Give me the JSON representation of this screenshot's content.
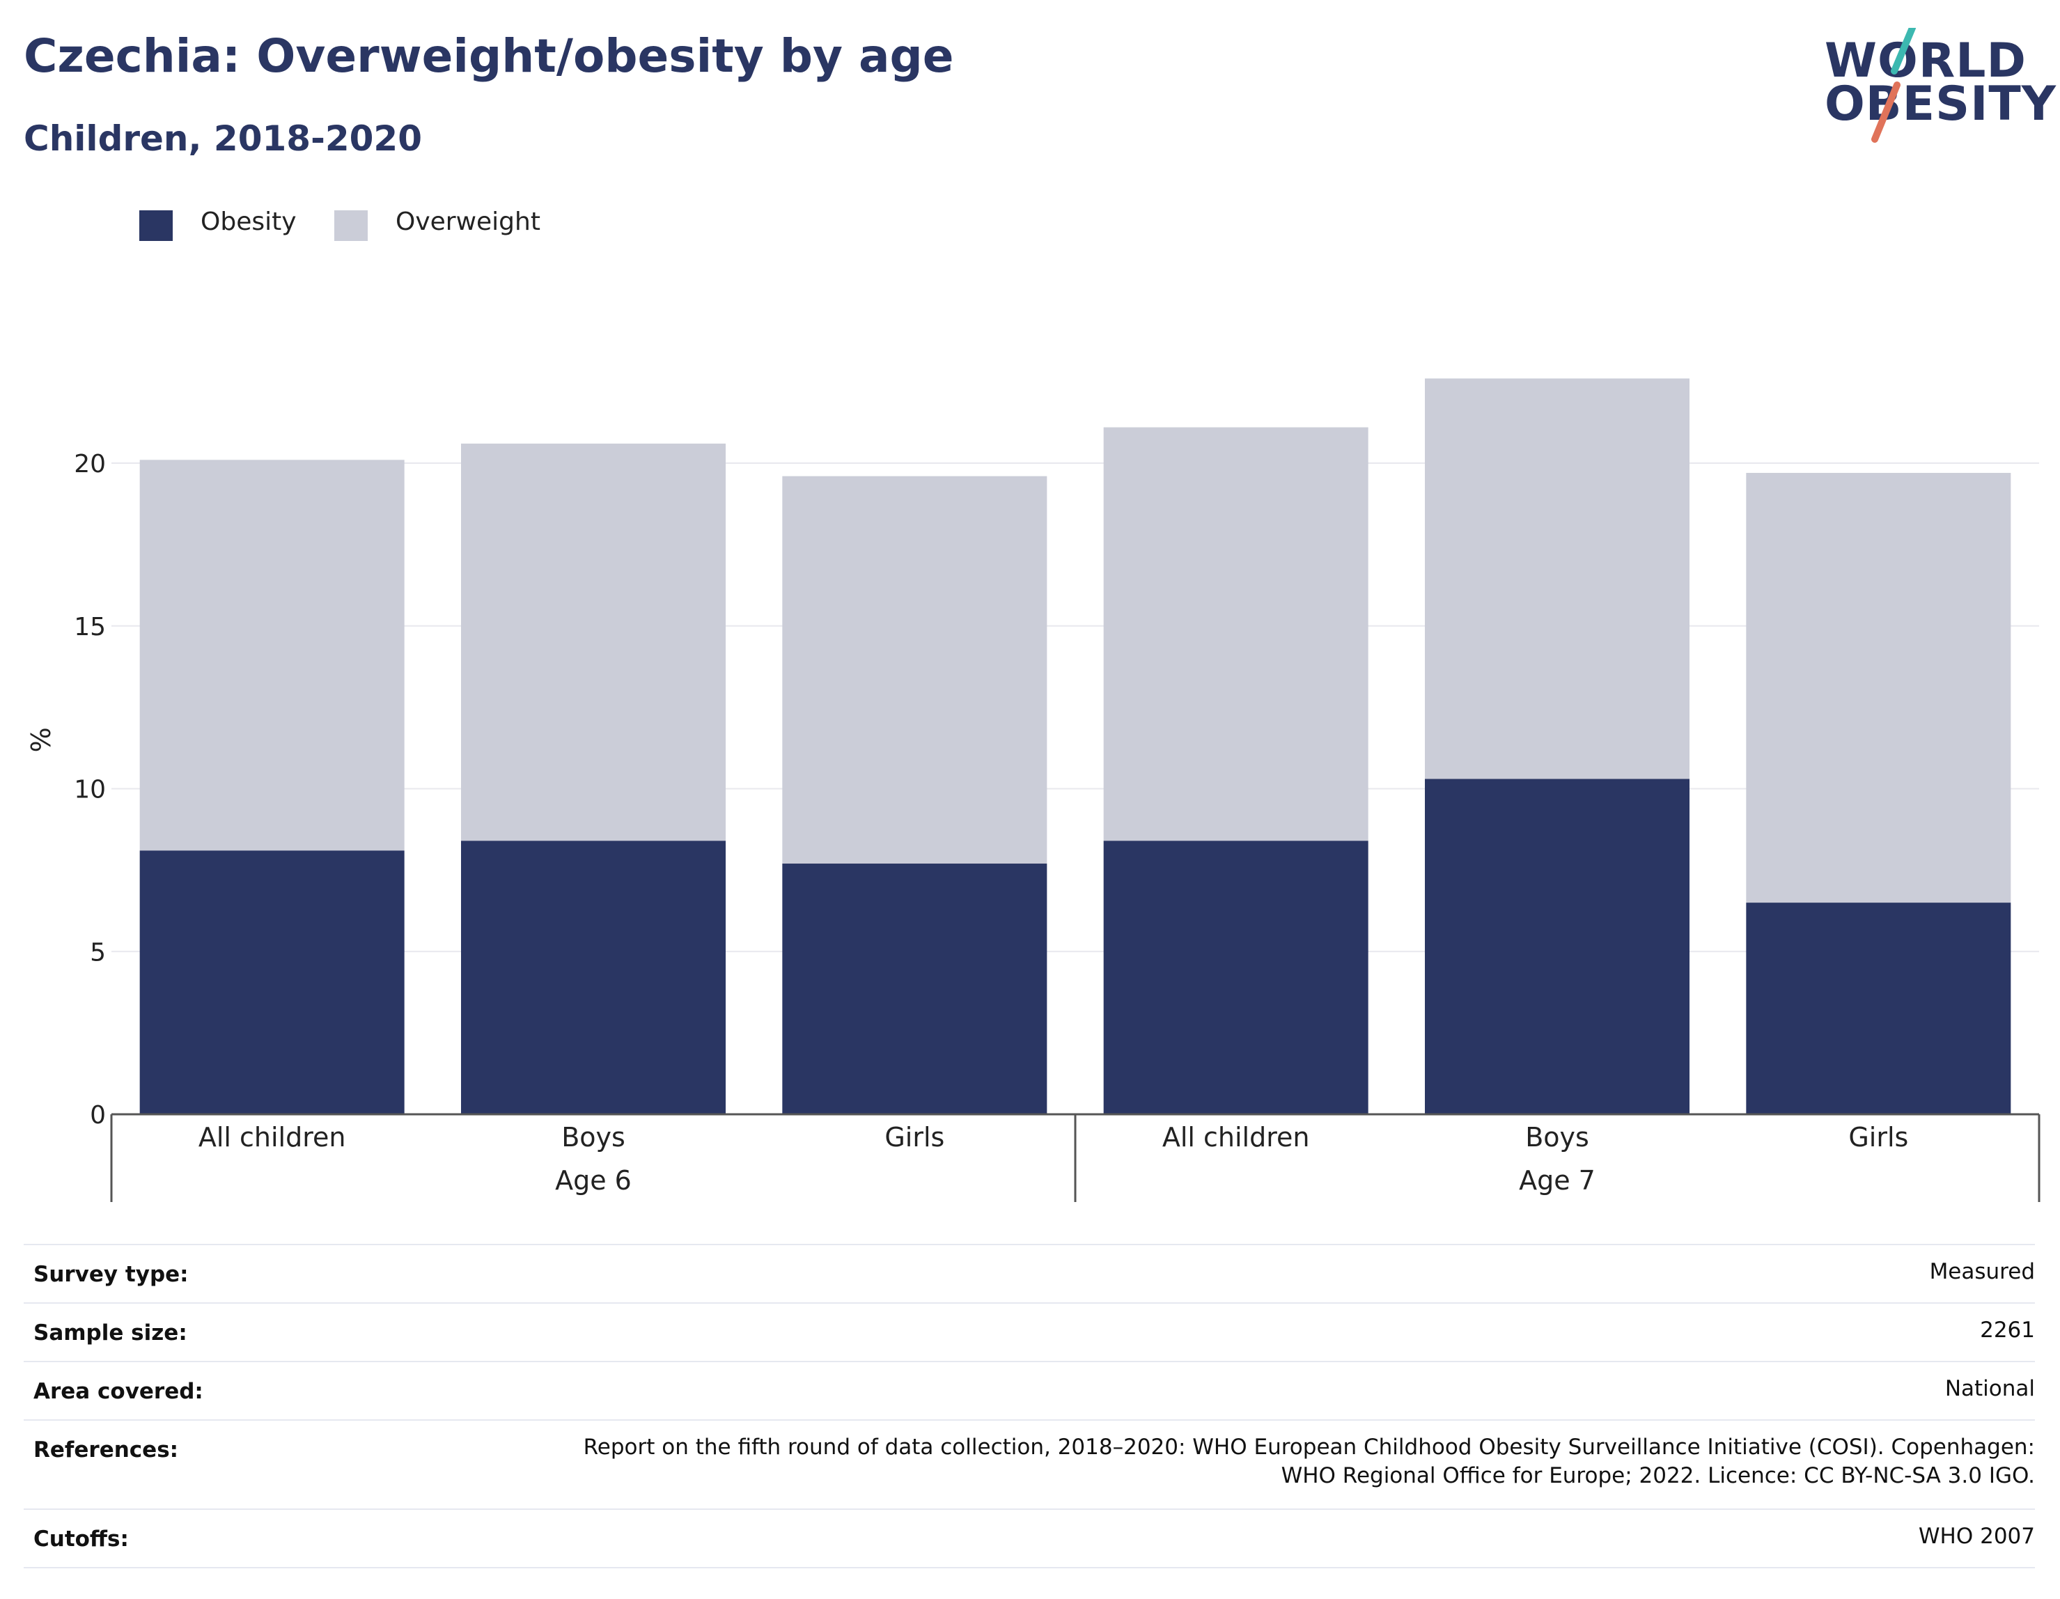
{
  "header": {
    "title": "Czechia: Overweight/obesity by age",
    "subtitle": "Children, 2018-2020"
  },
  "logo": {
    "line1": "WORLD",
    "line2": "OBESITY",
    "slash_colors": [
      "#3cb8b0",
      "#e0735a"
    ]
  },
  "colors": {
    "obesity": "#2a3663",
    "overweight": "#cbcdd8",
    "grid": "#e8e8ee",
    "axis": "#555555"
  },
  "chart_data": {
    "type": "bar",
    "stacked": true,
    "ylabel": "%",
    "ylim": [
      0,
      23
    ],
    "yticks": [
      0,
      5,
      10,
      15,
      20
    ],
    "grid": true,
    "legend_placement": "top-left",
    "groups": [
      {
        "label": "Age 6",
        "categories": [
          "All children",
          "Boys",
          "Girls"
        ]
      },
      {
        "label": "Age 7",
        "categories": [
          "All children",
          "Boys",
          "Girls"
        ]
      }
    ],
    "categories": [
      "All children",
      "Boys",
      "Girls",
      "All children",
      "Boys",
      "Girls"
    ],
    "series": [
      {
        "name": "Obesity",
        "values": [
          8.1,
          8.4,
          7.7,
          8.4,
          10.3,
          6.5
        ]
      },
      {
        "name": "Overweight",
        "values": [
          12.0,
          12.2,
          11.9,
          12.7,
          12.3,
          13.2
        ]
      }
    ]
  },
  "info": [
    {
      "key": "Survey type:",
      "value": [
        "Measured"
      ]
    },
    {
      "key": "Sample size:",
      "value": [
        "2261"
      ]
    },
    {
      "key": "Area covered:",
      "value": [
        "National"
      ]
    },
    {
      "key": "References:",
      "value": [
        "Report on the fifth round of data collection, 2018–2020: WHO European Childhood Obesity Surveillance Initiative (COSI). Copenhagen:",
        "WHO Regional Office for Europe; 2022. Licence: CC BY-NC-SA 3.0 IGO."
      ]
    },
    {
      "key": "Cutoffs:",
      "value": [
        "WHO 2007"
      ]
    }
  ]
}
